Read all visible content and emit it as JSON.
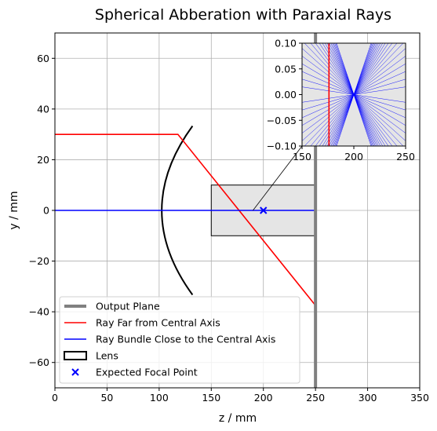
{
  "chart_data": {
    "type": "line",
    "title": "Spherical Abberation with Paraxial Rays",
    "xlabel": "z / mm",
    "ylabel": "y / mm",
    "xlim": [
      0,
      350
    ],
    "ylim": [
      -70,
      70
    ],
    "xticks": [
      0,
      50,
      100,
      150,
      200,
      250,
      300,
      350
    ],
    "yticks": [
      -60,
      -40,
      -20,
      0,
      20,
      40,
      60
    ],
    "grid": true,
    "legend_position": "lower-left",
    "colors": {
      "output_plane": "#808080",
      "far_ray": "#ff0000",
      "bundle": "#0000ff",
      "lens": "#000000",
      "focal_point": "#0000ff",
      "zoom_box_fill": "#e5e5e5"
    },
    "legend": [
      {
        "label": "Output Plane",
        "kind": "line",
        "color": "#808080"
      },
      {
        "label": "Ray Far from Central Axis",
        "kind": "line",
        "color": "#ff0000"
      },
      {
        "label": "Ray Bundle Close to the Central Axis",
        "kind": "line",
        "color": "#0000ff"
      },
      {
        "label": "Lens",
        "kind": "patch",
        "color": "#000000"
      },
      {
        "label": "Expected Focal Point",
        "kind": "marker",
        "color": "#0000ff"
      }
    ],
    "output_plane_z": 250,
    "lens": {
      "vertex_z": 100,
      "aperture_top": 33.3,
      "aperture_bottom": -33.3,
      "edge_z": 132,
      "curvature_radius": 50
    },
    "far_ray": {
      "points": [
        [
          0,
          30
        ],
        [
          118,
          30
        ],
        [
          250,
          -37.5
        ]
      ]
    },
    "ray_bundle": {
      "points": [
        [
          0,
          0
        ],
        [
          250,
          0
        ]
      ]
    },
    "expected_focal_point": [
      200,
      0
    ],
    "zoom_region": {
      "x": [
        150,
        250
      ],
      "y": [
        -10,
        10
      ]
    },
    "inset": {
      "xlim": [
        150,
        250
      ],
      "ylim": [
        -0.1,
        0.1
      ],
      "xticks": [
        150,
        200,
        250
      ],
      "yticks": [
        -0.1,
        -0.05,
        0.0,
        0.05,
        0.1
      ],
      "ytick_labels": [
        "−0.10",
        "−0.05",
        "0.00",
        "0.05",
        "0.10"
      ],
      "far_ray_crossing_z": 176,
      "bundle_focus": [
        200,
        0
      ],
      "bundle_slopes_per_mm": [
        0.0003,
        0.0006,
        0.0009,
        0.0012,
        0.0015,
        0.0018,
        0.0021,
        0.0024,
        0.0027,
        0.003,
        0.0033,
        0.0036,
        0.0039,
        0.0042,
        0.0045,
        0.0048,
        0.0051,
        0.0054,
        0.0057,
        0.006
      ]
    }
  }
}
